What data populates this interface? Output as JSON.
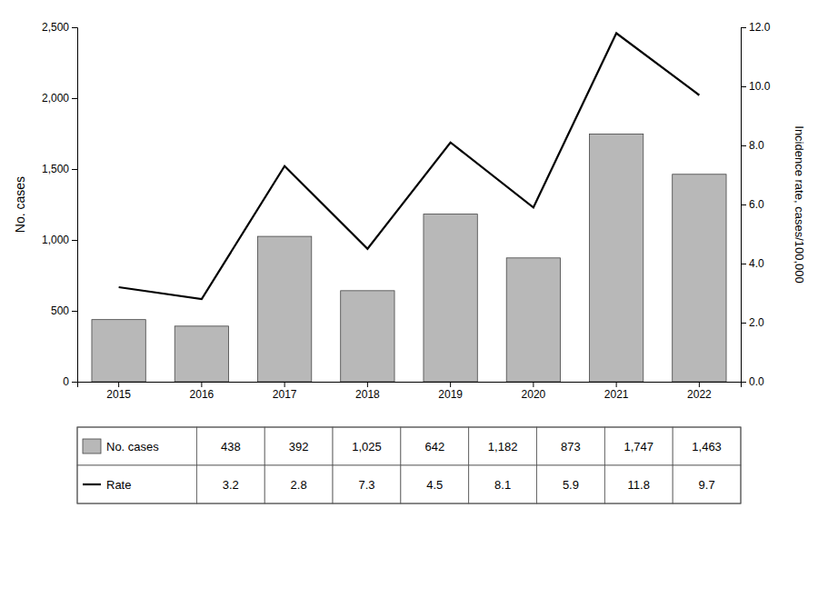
{
  "chart_data": {
    "type": "bar",
    "categories": [
      "2015",
      "2016",
      "2017",
      "2018",
      "2019",
      "2020",
      "2021",
      "2022"
    ],
    "series": [
      {
        "name": "No. cases",
        "type": "bar",
        "color": "#b8b8b8",
        "values": [
          438,
          392,
          1025,
          642,
          1182,
          873,
          1747,
          1463
        ],
        "value_labels": [
          "438",
          "392",
          "1,025",
          "642",
          "1,182",
          "873",
          "1,747",
          "1,463"
        ]
      },
      {
        "name": "Rate",
        "type": "line",
        "color": "#000000",
        "axis": "y2",
        "values": [
          3.2,
          2.8,
          7.3,
          4.5,
          8.1,
          5.9,
          11.8,
          9.7
        ]
      }
    ],
    "ylabel": "No. cases",
    "y2label": "Incidence rate, cases/100,000",
    "ylim": [
      0,
      2500
    ],
    "yticks": [
      0,
      500,
      {
        "value": 1000,
        "label": "1,000"
      },
      {
        "value": 1500,
        "label": "1,500"
      },
      {
        "value": 2000,
        "label": "2,000"
      },
      {
        "value": 2500,
        "label": "2,500"
      }
    ],
    "y2lim": [
      0,
      12.0
    ],
    "y2ticks": [
      {
        "value": 0,
        "label": "0.0"
      },
      {
        "value": 2.0,
        "label": "2.0"
      },
      {
        "value": 4.0,
        "label": "4.0"
      },
      {
        "value": 6.0,
        "label": "6.0"
      },
      {
        "value": 8.0,
        "label": "8.0"
      },
      {
        "value": 10.0,
        "label": "10.0"
      },
      {
        "value": 12.0,
        "label": "12.0"
      }
    ],
    "data_labels": true
  }
}
